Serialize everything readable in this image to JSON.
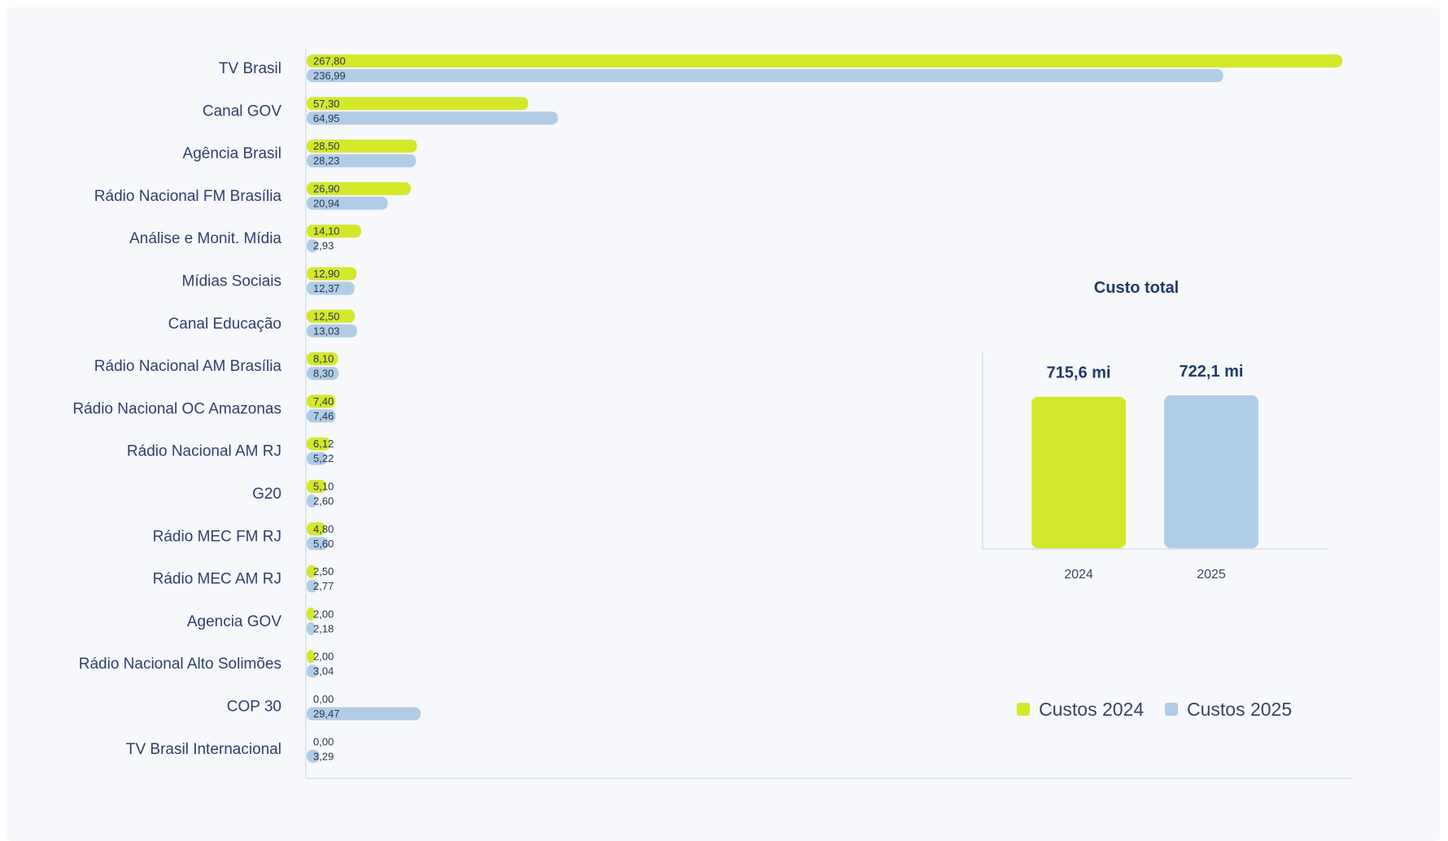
{
  "colors": {
    "series_2024": "#d4e82b",
    "series_2025": "#b1cde6",
    "axis": "#dfe5ee"
  },
  "chart_data": [
    {
      "type": "bar",
      "orientation": "horizontal",
      "categories": [
        "TV Brasil",
        "Canal GOV",
        "Agência Brasil",
        "Rádio Nacional FM Brasília",
        "Análise e Monit. Mídia",
        "Mídias Sociais",
        "Canal Educação",
        "Rádio Nacional AM Brasília",
        "Rádio Nacional OC Amazonas",
        "Rádio Nacional AM RJ",
        "G20",
        "Rádio MEC FM RJ",
        "Rádio MEC AM RJ",
        "Agencia GOV",
        "Rádio Nacional Alto Solimões",
        "COP 30",
        "TV Brasil Internacional"
      ],
      "series": [
        {
          "name": "Custos 2024",
          "values": [
            267.8,
            57.3,
            28.5,
            26.9,
            14.1,
            12.9,
            12.5,
            8.1,
            7.4,
            6.12,
            5.1,
            4.8,
            2.5,
            2.0,
            2.0,
            0.0,
            0.0
          ],
          "labels": [
            "267,80",
            "57,30",
            "28,50",
            "26,90",
            "14,10",
            "12,90",
            "12,50",
            "8,10",
            "7,40",
            "6,12",
            "5,10",
            "4,80",
            "2,50",
            "2,00",
            "2,00",
            "0,00",
            "0,00"
          ]
        },
        {
          "name": "Custos 2025",
          "values": [
            236.99,
            64.95,
            28.23,
            20.94,
            2.93,
            12.37,
            13.03,
            8.3,
            7.46,
            5.22,
            2.6,
            5.6,
            2.77,
            2.18,
            3.04,
            29.47,
            3.29
          ],
          "labels": [
            "236,99",
            "64,95",
            "28,23",
            "20,94",
            "2,93",
            "12,37",
            "13,03",
            "8,30",
            "7,46",
            "5,22",
            "2,60",
            "5,60",
            "2,77",
            "2,18",
            "3,04",
            "29,47",
            "3,29"
          ]
        }
      ],
      "xlim": [
        0,
        267.8
      ],
      "legend": {
        "position": "bottom-right",
        "entries": [
          "Custos 2024",
          "Custos 2025"
        ]
      }
    },
    {
      "type": "bar",
      "title": "Custo total",
      "categories": [
        "2024",
        "2025"
      ],
      "values": [
        715.6,
        722.1
      ],
      "labels": [
        "715,6 mi",
        "722,1 mi"
      ],
      "ylim": [
        0,
        722.1
      ]
    }
  ]
}
